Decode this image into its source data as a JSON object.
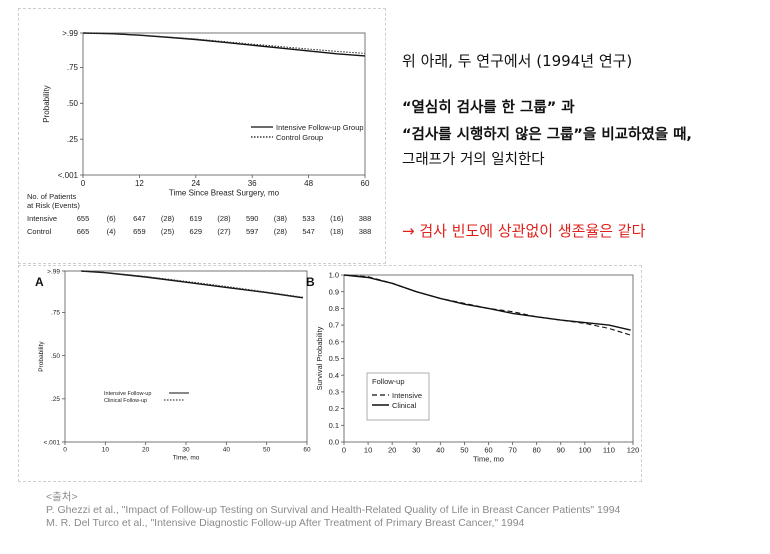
{
  "notes": {
    "intro": "위 아래, 두 연구에서 (1994년 연구)",
    "q1": "“열심히 검사를 한 그룹” 과",
    "q2": "“검사를 시행하지 않은 그룹”을 비교하였을 때,",
    "q3": "그래프가 거의 일치한다",
    "conclusion": "→ 검사 빈도에 상관없이 생존율은 같다"
  },
  "sources": {
    "heading": "<출처>",
    "ref1": "P. Ghezzi et al., \"Impact of Follow-up Testing on Survival and Health-Related Quality of Life in Breast Cancer Patients\" 1994",
    "ref2": "M. R. Del Turco et al., \"Intensive Diagnostic Follow-up After Treatment of Primary Breast Cancer,\" 1994"
  },
  "colors": {
    "conclusion": "#e0201b",
    "sources": "#8a8a8a",
    "panel_border": "#cfcfcf"
  },
  "chart_data": [
    {
      "type": "line",
      "panel": "top",
      "xlabel": "Time Since Breast Surgery, mo",
      "ylabel": "Probability",
      "xlim": [
        0,
        60
      ],
      "xticks": [
        0,
        12,
        24,
        36,
        48,
        60
      ],
      "yticks": [
        {
          "value": 0,
          "label": "<.001"
        },
        {
          "value": 0.25,
          "label": ".25"
        },
        {
          "value": 0.5,
          "label": ".50"
        },
        {
          "value": 0.75,
          "label": ".75"
        },
        {
          "value": 0.99,
          "label": ">.99"
        }
      ],
      "ylim": [
        0,
        0.99
      ],
      "legend_position": "lower-right",
      "series": [
        {
          "name": "Intensive Follow-up Group",
          "style": "solid",
          "x": [
            0,
            6,
            12,
            18,
            24,
            30,
            36,
            42,
            48,
            54,
            60
          ],
          "y": [
            0.99,
            0.985,
            0.975,
            0.96,
            0.945,
            0.925,
            0.905,
            0.885,
            0.865,
            0.845,
            0.83
          ]
        },
        {
          "name": "Control Group",
          "style": "dotted",
          "x": [
            0,
            6,
            12,
            18,
            24,
            30,
            36,
            42,
            48,
            54,
            60
          ],
          "y": [
            0.99,
            0.985,
            0.977,
            0.963,
            0.948,
            0.93,
            0.912,
            0.895,
            0.878,
            0.862,
            0.848
          ]
        }
      ],
      "risk_table": {
        "header": [
          "No. of Patients",
          "at Risk (Events)"
        ],
        "rows": [
          {
            "label": "Intensive",
            "cells": [
              "655",
              "(6)",
              "647",
              "(28)",
              "619",
              "(28)",
              "590",
              "(38)",
              "533",
              "(16)",
              "388"
            ]
          },
          {
            "label": "Control",
            "cells": [
              "665",
              "(4)",
              "659",
              "(25)",
              "629",
              "(27)",
              "597",
              "(28)",
              "547",
              "(18)",
              "388"
            ]
          }
        ]
      }
    },
    {
      "type": "line",
      "panel": "A",
      "label": "A",
      "xlabel": "Time, mo",
      "ylabel": "Probability",
      "xlim": [
        0,
        60
      ],
      "xticks": [
        0,
        10,
        20,
        30,
        40,
        50,
        60
      ],
      "yticks": [
        {
          "value": 0,
          "label": "<.001"
        },
        {
          "value": 0.25,
          "label": ".25"
        },
        {
          "value": 0.5,
          "label": ".50"
        },
        {
          "value": 0.75,
          "label": ".75"
        },
        {
          "value": 0.99,
          "label": ">.99"
        }
      ],
      "ylim": [
        0,
        0.99
      ],
      "legend_position": "lower-left",
      "series": [
        {
          "name": "Intensive Follow-up",
          "style": "solid",
          "x": [
            4,
            10,
            20,
            30,
            40,
            50,
            59
          ],
          "y": [
            0.99,
            0.98,
            0.955,
            0.925,
            0.895,
            0.865,
            0.835
          ]
        },
        {
          "name": "Clinical Follow-up",
          "style": "dotted",
          "x": [
            4,
            10,
            20,
            30,
            40,
            50,
            59
          ],
          "y": [
            0.99,
            0.982,
            0.958,
            0.93,
            0.9,
            0.868,
            0.838
          ]
        }
      ]
    },
    {
      "type": "line",
      "panel": "B",
      "label": "B",
      "xlabel": "Time, mo",
      "ylabel": "Survival Probability",
      "xlim": [
        0,
        120
      ],
      "ylim": [
        0,
        1
      ],
      "xticks": [
        0,
        10,
        20,
        30,
        40,
        50,
        60,
        70,
        80,
        90,
        100,
        110,
        120
      ],
      "yticks": [
        0,
        0.1,
        0.2,
        0.3,
        0.4,
        0.5,
        0.6,
        0.7,
        0.8,
        0.9,
        1.0
      ],
      "legend_title": "Follow-up",
      "legend_position": "lower-left",
      "series": [
        {
          "name": "Intensive",
          "style": "dashed",
          "x": [
            0,
            10,
            20,
            30,
            40,
            50,
            60,
            70,
            80,
            90,
            100,
            110,
            119
          ],
          "y": [
            1.0,
            0.99,
            0.95,
            0.9,
            0.86,
            0.83,
            0.8,
            0.78,
            0.75,
            0.73,
            0.71,
            0.68,
            0.64
          ]
        },
        {
          "name": "Clinical",
          "style": "solid",
          "x": [
            0,
            10,
            20,
            30,
            40,
            50,
            60,
            70,
            80,
            90,
            100,
            110,
            119
          ],
          "y": [
            1.0,
            0.985,
            0.95,
            0.9,
            0.86,
            0.825,
            0.8,
            0.77,
            0.75,
            0.73,
            0.715,
            0.7,
            0.67
          ]
        }
      ]
    }
  ]
}
